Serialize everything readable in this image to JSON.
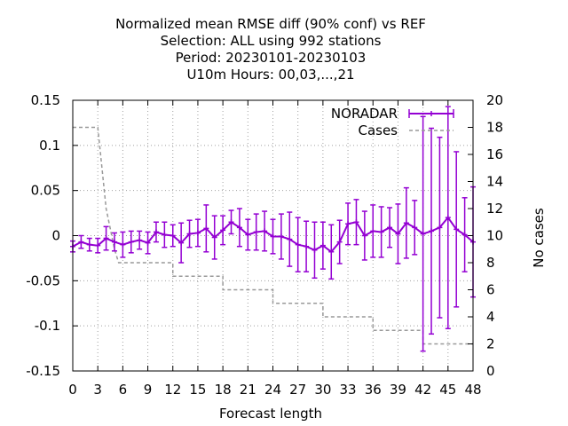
{
  "chart_data": {
    "type": "line",
    "title_lines": [
      "Normalized mean RMSE diff (90% conf) vs REF",
      "Selection: ALL using   992 stations",
      "Period: 20230101-20230103",
      "U10m   Hours:  00,03,...,21"
    ],
    "xlabel": "Forecast length",
    "ylabel": "",
    "y2label": "No cases",
    "xlim": [
      0,
      48
    ],
    "ylim": [
      -0.15,
      0.15
    ],
    "y2lim": [
      0,
      20
    ],
    "xticks": [
      "0",
      "3",
      "6",
      "9",
      "12",
      "15",
      "18",
      "21",
      "24",
      "27",
      "30",
      "33",
      "36",
      "39",
      "42",
      "45",
      "48"
    ],
    "yticks": [
      "0.15",
      "0.1",
      "0.05",
      "0",
      "-0.05",
      "-0.1",
      "-0.15"
    ],
    "y2ticks": [
      "20",
      "18",
      "16",
      "14",
      "12",
      "10",
      "8",
      "6",
      "4",
      "2",
      "0"
    ],
    "grid": true,
    "legend_position": "top-right",
    "series": [
      {
        "name": "NORADAR",
        "color": "#9400d3",
        "style": "line-points-errorbars",
        "x": [
          0,
          1,
          2,
          3,
          4,
          5,
          6,
          7,
          8,
          9,
          10,
          11,
          12,
          13,
          14,
          15,
          16,
          17,
          18,
          19,
          20,
          21,
          22,
          23,
          24,
          25,
          26,
          27,
          28,
          29,
          30,
          31,
          32,
          33,
          34,
          35,
          36,
          37,
          38,
          39,
          40,
          41,
          42,
          43,
          44,
          45,
          46,
          47,
          48
        ],
        "values": [
          -0.012,
          -0.007,
          -0.01,
          -0.011,
          -0.003,
          -0.007,
          -0.01,
          -0.007,
          -0.005,
          -0.008,
          0.004,
          0.001,
          0.0,
          -0.008,
          0.002,
          0.003,
          0.008,
          -0.002,
          0.006,
          0.015,
          0.009,
          0.001,
          0.004,
          0.005,
          -0.001,
          -0.001,
          -0.004,
          -0.01,
          -0.012,
          -0.016,
          -0.011,
          -0.018,
          -0.007,
          0.013,
          0.015,
          0.0,
          0.005,
          0.004,
          0.009,
          0.002,
          0.014,
          0.009,
          0.002,
          0.005,
          0.009,
          0.02,
          0.007,
          0.001,
          -0.007
        ],
        "err": [
          0.006,
          0.007,
          0.007,
          0.008,
          0.013,
          0.01,
          0.014,
          0.012,
          0.01,
          0.012,
          0.011,
          0.014,
          0.012,
          0.022,
          0.015,
          0.015,
          0.026,
          0.024,
          0.016,
          0.013,
          0.021,
          0.017,
          0.02,
          0.022,
          0.019,
          0.025,
          0.03,
          0.03,
          0.028,
          0.031,
          0.026,
          0.03,
          0.024,
          0.023,
          0.025,
          0.027,
          0.029,
          0.028,
          0.022,
          0.033,
          0.039,
          0.03,
          0.13,
          0.114,
          0.1,
          0.123,
          0.086,
          0.041,
          0.061
        ]
      },
      {
        "name": "Cases",
        "color": "#999999",
        "style": "step-dashed",
        "axis": "y2",
        "x": [
          0,
          3,
          4,
          6,
          12,
          18,
          24,
          30,
          36,
          42,
          48
        ],
        "values": [
          18,
          18,
          12,
          8,
          7,
          6,
          5,
          4,
          3,
          2,
          2
        ]
      }
    ]
  }
}
